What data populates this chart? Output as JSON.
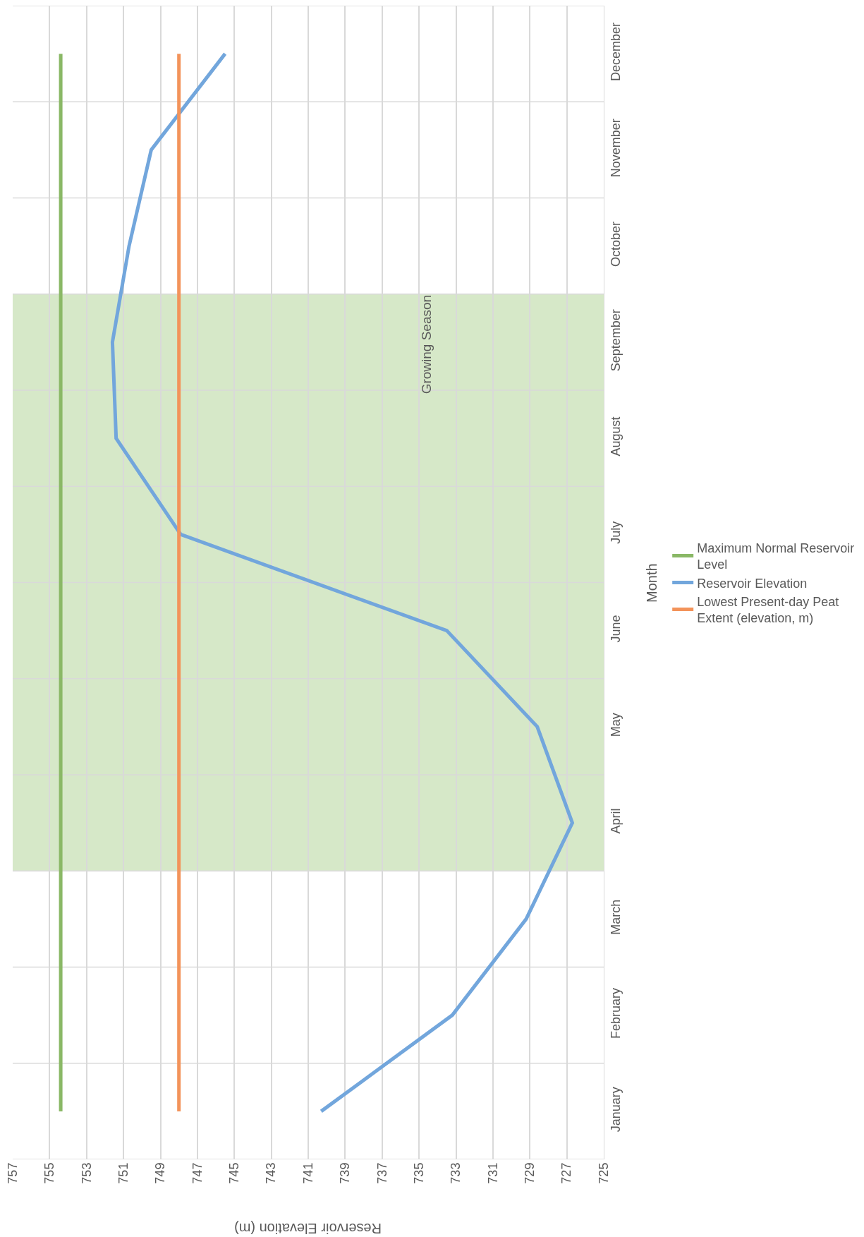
{
  "chart_data": {
    "type": "line",
    "orientation": "horizontal",
    "xlabel": "Reservoir Elevation (m)",
    "ylabel": "Month",
    "categories": [
      "December",
      "November",
      "October",
      "September",
      "August",
      "July",
      "June",
      "May",
      "April",
      "March",
      "February",
      "January"
    ],
    "series": [
      {
        "name": "Maximum Normal Reservoir Level",
        "color": "#8ab866",
        "values": [
          754.4,
          754.4,
          754.4,
          754.4,
          754.4,
          754.4,
          754.4,
          754.4,
          754.4,
          754.4,
          754.4,
          754.4
        ]
      },
      {
        "name": "Reservoir Elevation",
        "color": "#72a6dc",
        "values": [
          745.5,
          749.5,
          750.7,
          751.6,
          751.4,
          747.9,
          733.5,
          728.6,
          726.7,
          729.2,
          733.2,
          740.3
        ]
      },
      {
        "name": "Lowest Present-day Peat Extent (elevation, m)",
        "color": "#f3935a",
        "values": [
          748.0,
          748.0,
          748.0,
          748.0,
          748.0,
          748.0,
          748.0,
          748.0,
          748.0,
          748.0,
          748.0,
          748.0
        ]
      }
    ],
    "bands": [
      {
        "axis": "y",
        "from": "September",
        "to": "April",
        "label": "Growing Season",
        "color": "#d6e8c8"
      }
    ],
    "xlim": [
      757,
      725
    ],
    "xticks": [
      757,
      755,
      753,
      751,
      749,
      747,
      745,
      743,
      741,
      739,
      737,
      735,
      733,
      731,
      729,
      727,
      725
    ],
    "grid": true,
    "legend": "right",
    "marker": "none",
    "line_style": "solid"
  }
}
